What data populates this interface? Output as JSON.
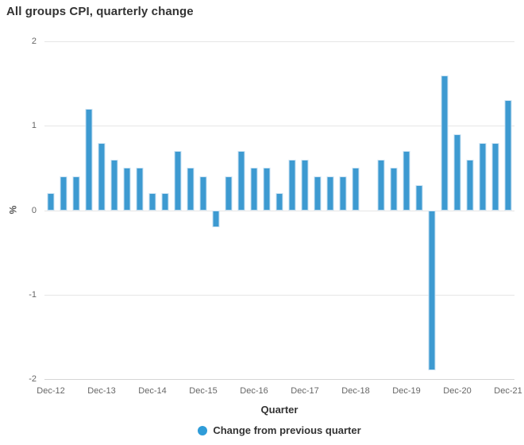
{
  "title": "All groups CPI, quarterly change",
  "chart_data": {
    "type": "bar",
    "title": "All groups CPI, quarterly change",
    "categories": [
      "Dec-12",
      "Mar-13",
      "Jun-13",
      "Sep-13",
      "Dec-13",
      "Mar-14",
      "Jun-14",
      "Sep-14",
      "Dec-14",
      "Mar-15",
      "Jun-15",
      "Sep-15",
      "Dec-15",
      "Mar-16",
      "Jun-16",
      "Sep-16",
      "Dec-16",
      "Mar-17",
      "Jun-17",
      "Sep-17",
      "Dec-17",
      "Mar-18",
      "Jun-18",
      "Sep-18",
      "Dec-18",
      "Mar-19",
      "Jun-19",
      "Sep-19",
      "Dec-19",
      "Mar-20",
      "Jun-20",
      "Sep-20",
      "Dec-20",
      "Mar-21",
      "Jun-21",
      "Sep-21",
      "Dec-21"
    ],
    "values": [
      0.2,
      0.4,
      0.4,
      1.2,
      0.8,
      0.6,
      0.5,
      0.5,
      0.2,
      0.2,
      0.7,
      0.5,
      0.4,
      -0.2,
      0.4,
      0.7,
      0.5,
      0.5,
      0.2,
      0.6,
      0.6,
      0.4,
      0.4,
      0.4,
      0.5,
      0.0,
      0.6,
      0.5,
      0.7,
      0.3,
      -1.9,
      1.6,
      0.9,
      0.6,
      0.8,
      0.8,
      1.3
    ],
    "x_tick_labels": [
      "Dec-12",
      "Dec-13",
      "Dec-14",
      "Dec-15",
      "Dec-16",
      "Dec-17",
      "Dec-18",
      "Dec-19",
      "Dec-20",
      "Dec-21"
    ],
    "x_tick_every": 4,
    "xlabel": "Quarter",
    "ylabel": "%",
    "y_ticks": [
      2,
      1,
      0,
      -1,
      -2
    ],
    "ylim": [
      -2,
      2
    ],
    "grid": "horizontal",
    "legend": [
      "Change from previous quarter"
    ],
    "legend_position": "bottom"
  },
  "colors": {
    "bar_fill": "#3d9ad1",
    "bar_border": "#c9e2f3",
    "legend_dot": "#2f9cd8",
    "gridline": "#e6e6e6",
    "axis_line": "#d6d6d6",
    "heading_text": "#333333",
    "tick_text": "#666666"
  }
}
